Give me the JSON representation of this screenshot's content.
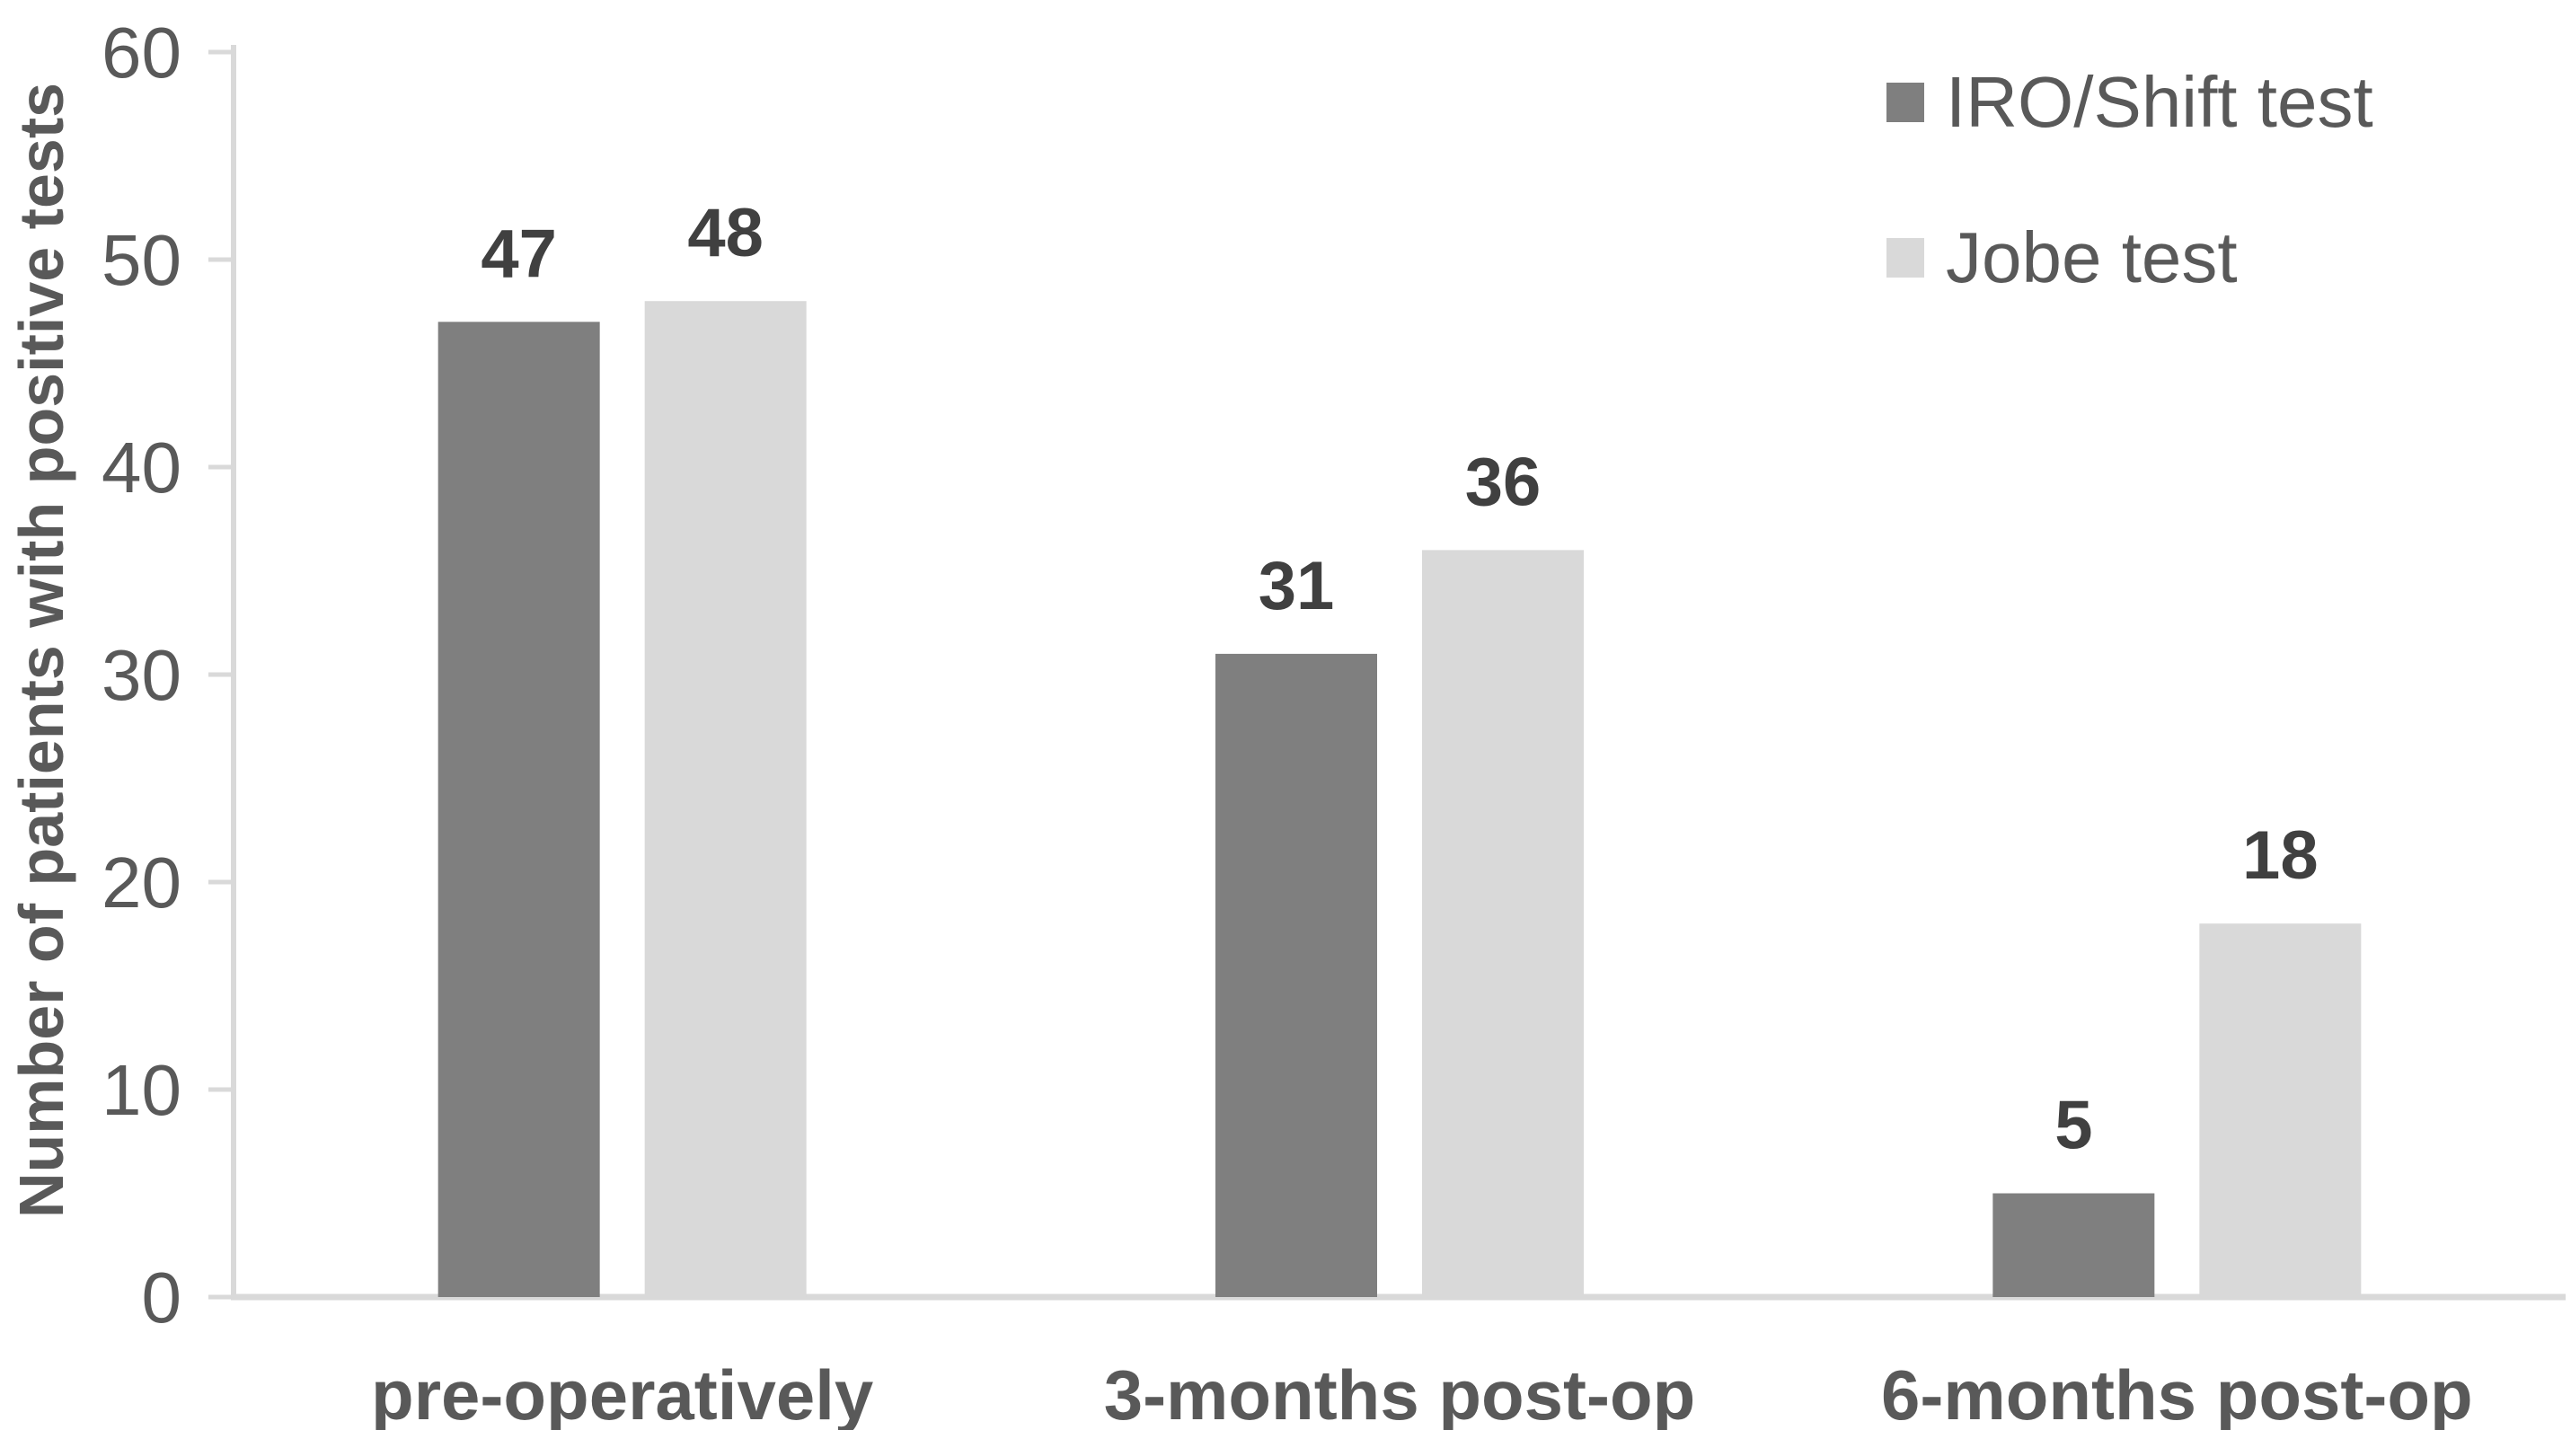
{
  "chart_data": {
    "type": "bar",
    "title": "",
    "xlabel": "",
    "ylabel": "Number of patients with positive tests",
    "categories": [
      "pre-operatively",
      "3-months post-op",
      "6-months post-op"
    ],
    "series": [
      {
        "name": "IRO/Shift test",
        "values": [
          47,
          31,
          5
        ],
        "color": "#7F7F7F"
      },
      {
        "name": "Jobe test",
        "values": [
          48,
          36,
          18
        ],
        "color": "#D9D9D9"
      }
    ],
    "ylim": [
      0,
      60
    ],
    "yticks": [
      0,
      10,
      20,
      30,
      40,
      50,
      60
    ],
    "grid": false,
    "legend_position": "top-right",
    "value_labels_shown": true
  },
  "colors": {
    "axis_line": "#D9D9D9",
    "tick_label": "#595959",
    "category_label": "#595959",
    "value_label": "#404040",
    "axis_title": "#595959",
    "legend_label": "#595959",
    "background": "#FFFFFF"
  }
}
